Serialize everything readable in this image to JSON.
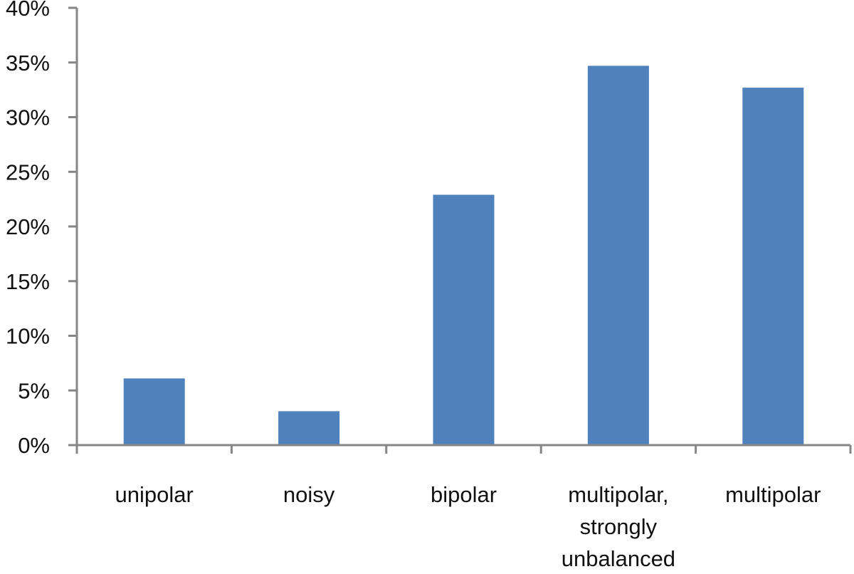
{
  "chart_data": {
    "type": "bar",
    "title": "",
    "xlabel": "",
    "ylabel": "",
    "categories": [
      [
        "unipolar"
      ],
      [
        "noisy"
      ],
      [
        "bipolar"
      ],
      [
        "multipolar,",
        "strongly",
        "unbalanced"
      ],
      [
        "multipolar"
      ]
    ],
    "values": [
      6.1,
      3.1,
      22.9,
      34.7,
      32.7
    ],
    "ylim": [
      0,
      40
    ],
    "yticks": [
      0,
      5,
      10,
      15,
      20,
      25,
      30,
      35,
      40
    ],
    "ytick_labels": [
      "0%",
      "5%",
      "10%",
      "15%",
      "20%",
      "25%",
      "30%",
      "35%",
      "40%"
    ],
    "bar_color": "#4f81bd",
    "axis_color": "#868686",
    "grid": false,
    "legend": "none"
  }
}
